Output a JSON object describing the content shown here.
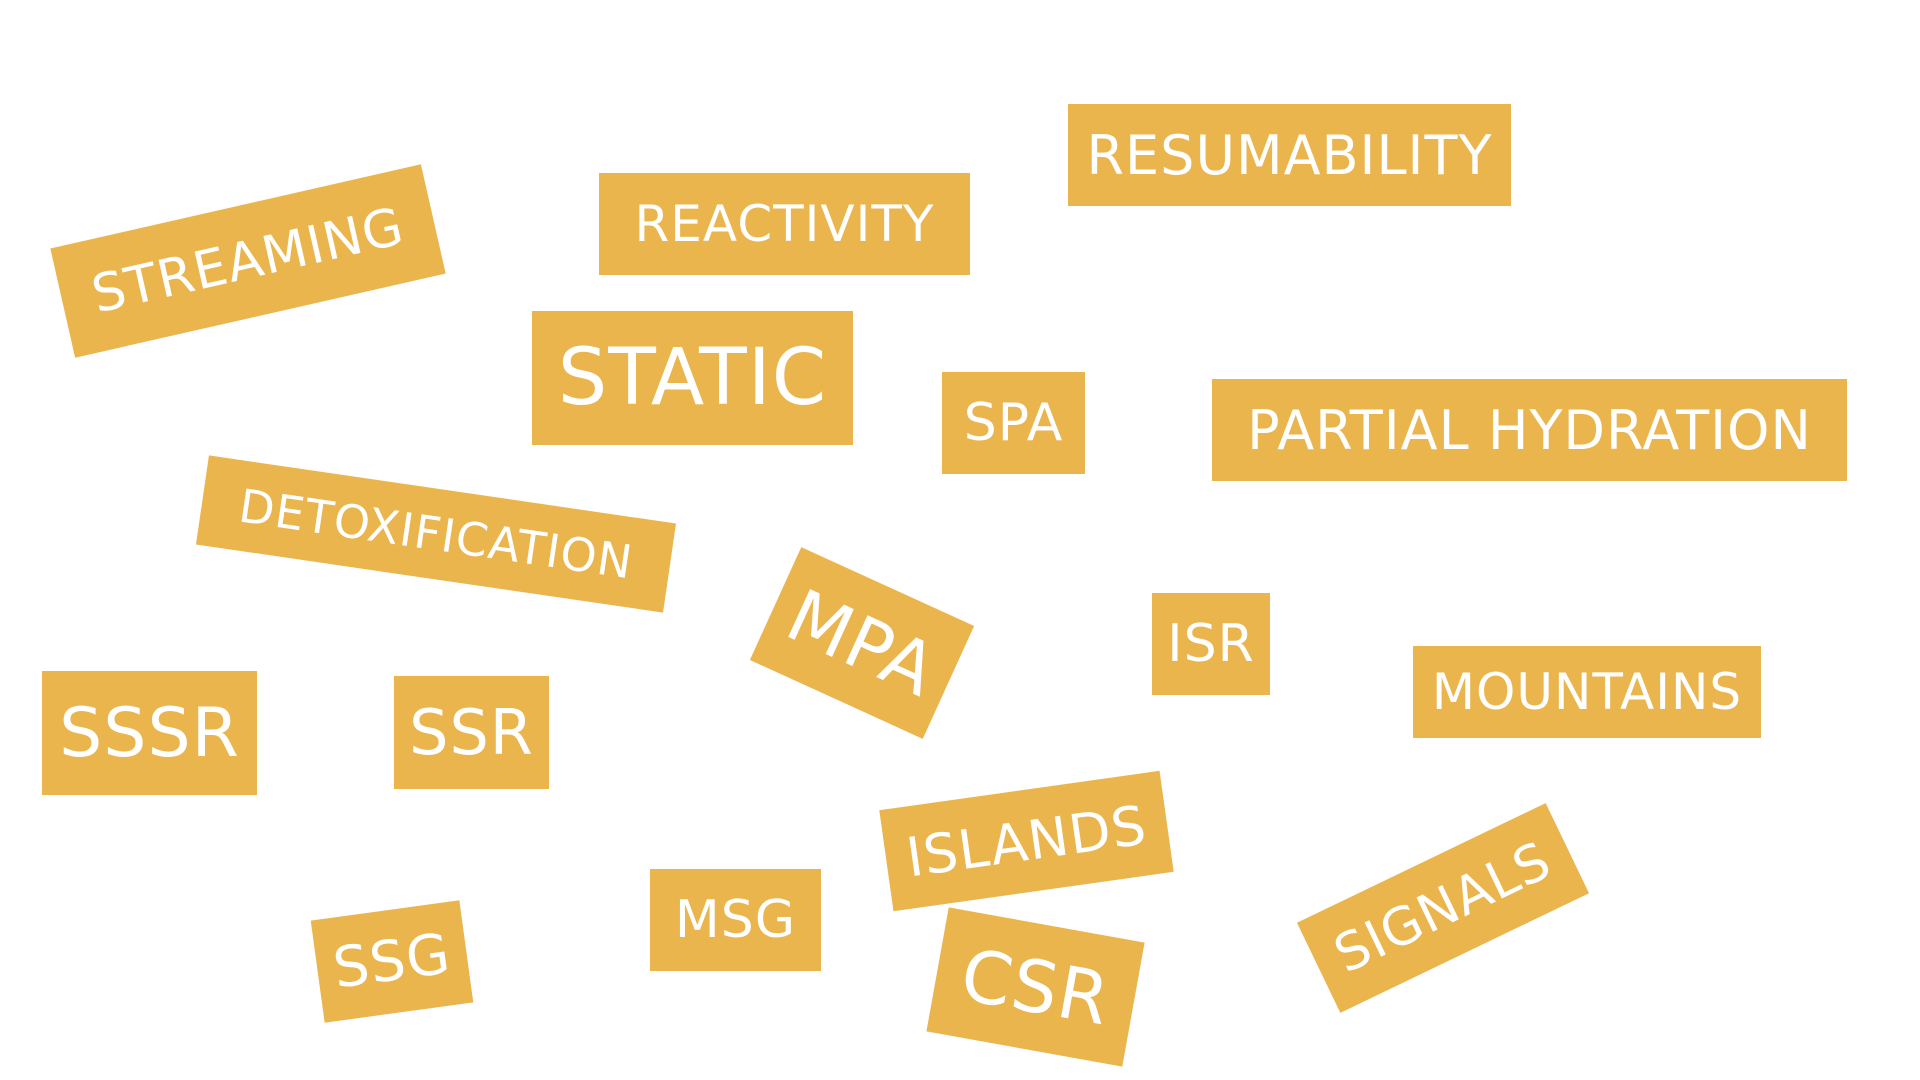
{
  "colors": {
    "background": "#ffffff",
    "tag_fill": "#EBB54E",
    "tag_text": "#ffffff"
  },
  "tags": {
    "streaming": "STREAMING",
    "reactivity": "REACTIVITY",
    "resumability": "RESUMABILITY",
    "static": "STATIC",
    "spa": "SPA",
    "partial_hydration": "PARTIAL HYDRATION",
    "detoxification": "DETOXIFICATION",
    "mpa": "MPA",
    "isr": "ISR",
    "mountains": "MOUNTAINS",
    "sssr": "SSSR",
    "ssr": "SSR",
    "islands": "ISLANDS",
    "signals": "SIGNALS",
    "ssg": "SSG",
    "msg": "MSG",
    "csr": "CSR"
  }
}
